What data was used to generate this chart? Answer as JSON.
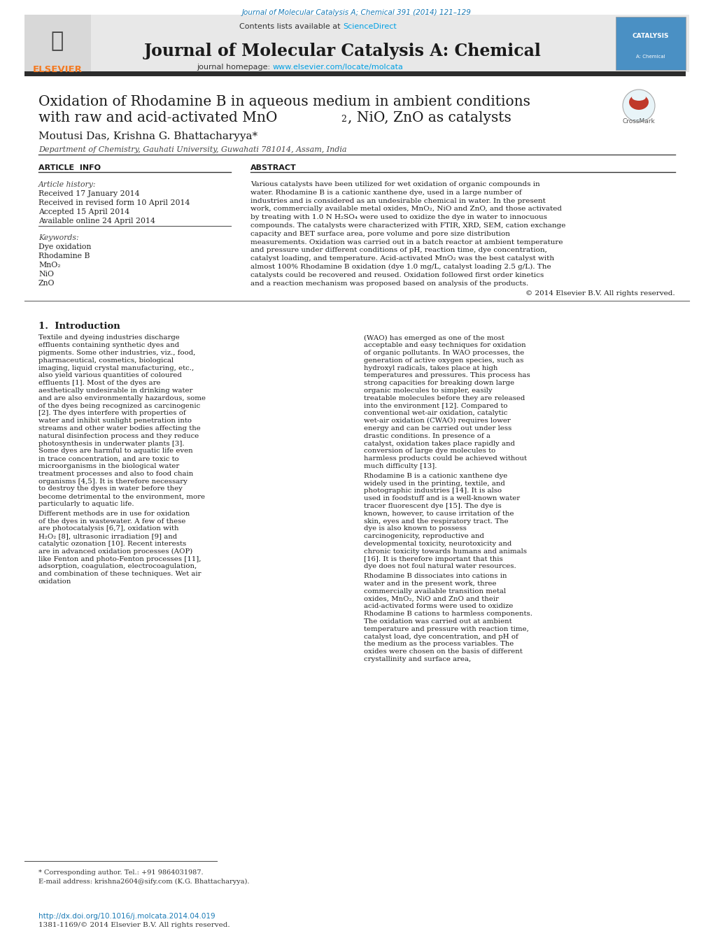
{
  "journal_ref": "Journal of Molecular Catalysis A; Chemical 391 (2014) 121–129",
  "journal_ref_color": "#1a7ab5",
  "contents_text": "Contents lists available at ",
  "sciencedirect_text": "ScienceDirect",
  "sciencedirect_color": "#00a0e4",
  "journal_name": "Journal of Molecular Catalysis A: Chemical",
  "homepage_prefix": "journal homepage: ",
  "homepage_url": "www.elsevier.com/locate/molcata",
  "homepage_color": "#00a0e4",
  "elsevier_color": "#f47920",
  "header_bg": "#e8e8e8",
  "dark_bar_color": "#2c2c2c",
  "title_line1": "Oxidation of Rhodamine B in aqueous medium in ambient conditions",
  "title_line2": "with raw and acid-activated MnO",
  "title_line2_sub": "2",
  "title_line2_rest": ", NiO, ZnO as catalysts",
  "authors": "Moutusi Das, Krishna G. Bhattacharyya*",
  "affiliation": "Department of Chemistry, Gauhati University, Guwahati 781014, Assam, India",
  "article_info_header": "ARTICLE  INFO",
  "abstract_header": "ABSTRACT",
  "article_history_label": "Article history:",
  "received": "Received 17 January 2014",
  "received_revised": "Received in revised form 10 April 2014",
  "accepted": "Accepted 15 April 2014",
  "available": "Available online 24 April 2014",
  "keywords_label": "Keywords:",
  "keywords": [
    "Dye oxidation",
    "Rhodamine B",
    "MnO₂",
    "NiO",
    "ZnO"
  ],
  "abstract_text": "Various catalysts have been utilized for wet oxidation of organic compounds in water. Rhodamine B is a cationic xanthene dye, used in a large number of industries and is considered as an undesirable chemical in water. In the present work, commercially available metal oxides, MnO₂, NiO and ZnO, and those activated by treating with 1.0 N H₂SO₄ were used to oxidize the dye in water to innocuous compounds. The catalysts were characterized with FTIR, XRD, SEM, cation exchange capacity and BET surface area, pore volume and pore size distribution measurements. Oxidation was carried out in a batch reactor at ambient temperature and pressure under different conditions of pH, reaction time, dye concentration, catalyst loading, and temperature. Acid-activated MnO₂ was the best catalyst with almost 100% Rhodamine B oxidation (dye 1.0 mg/L, catalyst loading 2.5 g/L). The catalysts could be recovered and reused. Oxidation followed first order kinetics and a reaction mechanism was proposed based on analysis of the products.",
  "copyright": "© 2014 Elsevier B.V. All rights reserved.",
  "intro_heading": "1.  Introduction",
  "intro_col1": "    Textile and dyeing industries discharge effluents containing synthetic dyes and pigments. Some other industries, viz., food, pharmaceutical, cosmetics, biological imaging, liquid crystal manufacturing, etc., also yield various quantities of coloured effluents [1]. Most of the dyes are aesthetically undesirable in drinking water and are also environmentally hazardous, some of the dyes being recognized as carcinogenic [2]. The dyes interfere with properties of water and inhibit sunlight penetration into streams and other water bodies affecting the natural disinfection process and they reduce photosynthesis in underwater plants [3]. Some dyes are harmful to aquatic life even in trace concentration, and are toxic to microorganisms in the biological water treatment processes and also to food chain organisms [4,5]. It is therefore necessary to destroy the dyes in water before they become detrimental to the environment, more particularly to aquatic life.\n    Different methods are in use for oxidation of the dyes in wastewater. A few of these are photocatalysis [6,7], oxidation with H₂O₂ [8], ultrasonic irradiation [9] and catalytic ozonation [10]. Recent interests are in advanced oxidation processes (AOP) like Fenton and photo-Fenton processes [11], adsorption, coagulation, electrocoagulation, and combination of these techniques. Wet air oxidation",
  "intro_col2": "(WAO) has emerged as one of the most acceptable and easy techniques for oxidation of organic pollutants. In WAO processes, the generation of active oxygen species, such as hydroxyl radicals, takes place at high temperatures and pressures. This process has strong capacities for breaking down large organic molecules to simpler, easily treatable molecules before they are released into the environment [12]. Compared to conventional wet-air oxidation, catalytic wet-air oxidation (CWAO) requires lower energy and can be carried out under less drastic conditions. In presence of a catalyst, oxidation takes place rapidly and conversion of large dye molecules to harmless products could be achieved without much difficulty [13].\n    Rhodamine B is a cationic xanthene dye widely used in the printing, textile, and photographic industries [14]. It is also used in foodstuff and is a well-known water tracer fluorescent dye [15]. The dye is known, however, to cause irritation of the skin, eyes and the respiratory tract. The dye is also known to possess carcinogenicity, reproductive and developmental toxicity, neurotoxicity and chronic toxicity towards humans and animals [16]. It is therefore important that this dye does not foul natural water resources.\n    Rhodamine B dissociates into cations in water and in the present work, three commercially available transition metal oxides, MnO₂, NiO and ZnO and their acid-activated forms were used to oxidize Rhodamine B cations to harmless components. The oxidation was carried out at ambient temperature and pressure with reaction time, catalyst load, dye concentration, and pH of the medium as the process variables. The oxides were chosen on the basis of different crystallinity and surface area,",
  "footnote_star": "* Corresponding author. Tel.: +91 9864031987.",
  "footnote_email": "E-mail address: krishna2604@sify.com (K.G. Bhattacharyya).",
  "footnote_doi": "http://dx.doi.org/10.1016/j.molcata.2014.04.019",
  "footnote_issn": "1381-1169/© 2014 Elsevier B.V. All rights reserved.",
  "text_color": "#1a1a1a",
  "link_color": "#1a7ab5",
  "bg_color": "#ffffff"
}
